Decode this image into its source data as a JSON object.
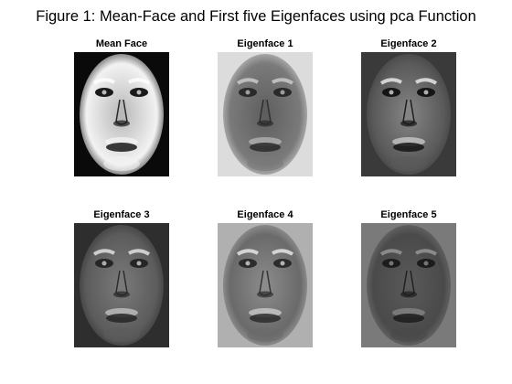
{
  "figure_title": "Figure 1: Mean-Face and First five Eigenfaces using pca Function",
  "panels": [
    {
      "title": "Mean Face",
      "bg": "#f2f2f2",
      "mid": "#b8b8b8",
      "feature": "#1a1a1a",
      "highlight": "#ffffff",
      "edge": "#0a0a0a"
    },
    {
      "title": "Eigenface 1",
      "bg": "#7a7a7a",
      "mid": "#5e5e5e",
      "feature": "#2a2a2a",
      "highlight": "#cfcfcf",
      "edge": "#dcdcdc"
    },
    {
      "title": "Eigenface 2",
      "bg": "#5a5a5a",
      "mid": "#858585",
      "feature": "#151515",
      "highlight": "#f0f0f0",
      "edge": "#3a3a3a"
    },
    {
      "title": "Eigenface 3",
      "bg": "#5c5c5c",
      "mid": "#7a7a7a",
      "feature": "#262626",
      "highlight": "#e8e8e8",
      "edge": "#2e2e2e"
    },
    {
      "title": "Eigenface 4",
      "bg": "#6a6a6a",
      "mid": "#8c8c8c",
      "feature": "#2c2c2c",
      "highlight": "#eeeeee",
      "edge": "#b0b0b0"
    },
    {
      "title": "Eigenface 5",
      "bg": "#4a4a4a",
      "mid": "#5a5a5a",
      "feature": "#1c1c1c",
      "highlight": "#9a9a9a",
      "edge": "#7a7a7a"
    }
  ]
}
